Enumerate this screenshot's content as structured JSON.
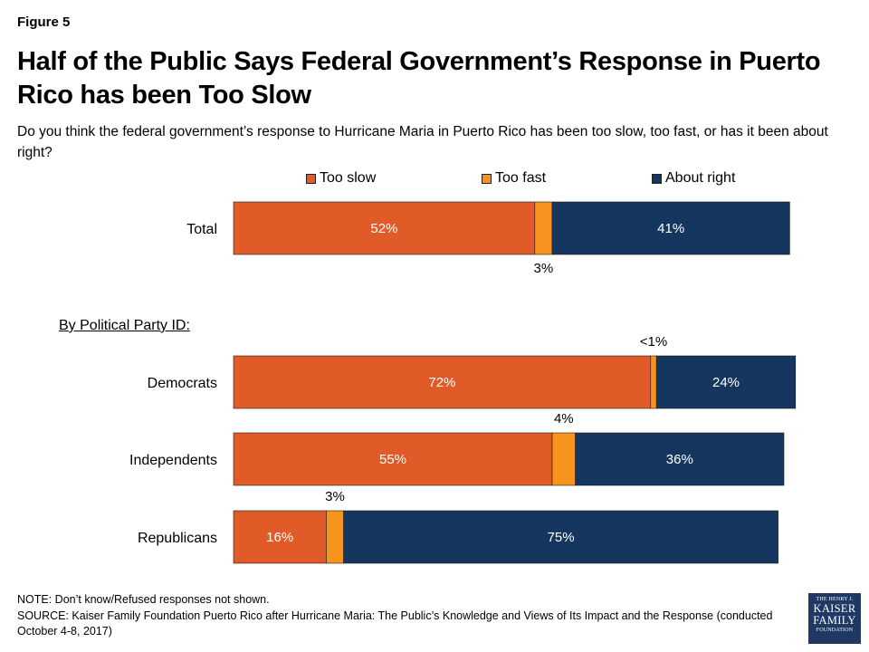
{
  "figure_label": "Figure 5",
  "title": "Half of the Public Says Federal Government’s Response in Puerto Rico has been Too Slow",
  "subtitle": "Do you think the federal government’s response to Hurricane Maria in Puerto Rico has been too slow, too fast, or has it been about right?",
  "colors": {
    "too_slow": "#e05b28",
    "too_fast": "#f7941d",
    "about_right": "#15365e"
  },
  "section_label": "By Political Party ID:",
  "chart_data": {
    "type": "bar",
    "orientation": "horizontal",
    "stacked": true,
    "categories": [
      "Total",
      "Democrats",
      "Independents",
      "Republicans"
    ],
    "series": [
      {
        "name": "Too slow",
        "values": [
          52,
          72,
          55,
          16
        ],
        "labels": [
          "52%",
          "72%",
          "55%",
          "16%"
        ]
      },
      {
        "name": "Too fast",
        "values": [
          3,
          1,
          4,
          3
        ],
        "labels": [
          "3%",
          "<1%",
          "4%",
          "3%"
        ]
      },
      {
        "name": "About right",
        "values": [
          41,
          24,
          36,
          75
        ],
        "labels": [
          "41%",
          "24%",
          "36%",
          "75%"
        ]
      }
    ],
    "legend_position": "top",
    "grid": false
  },
  "notes": {
    "note": "NOTE: Don’t know/Refused responses not shown.",
    "source": "SOURCE: Kaiser Family Foundation Puerto Rico after Hurricane Maria: The Public’s Knowledge and Views of Its Impact and the Response (conducted October 4-8, 2017)"
  },
  "logo": {
    "line1": "THE HENRY J.",
    "line2": "KAISER",
    "line3": "FAMILY",
    "line4": "FOUNDATION"
  }
}
